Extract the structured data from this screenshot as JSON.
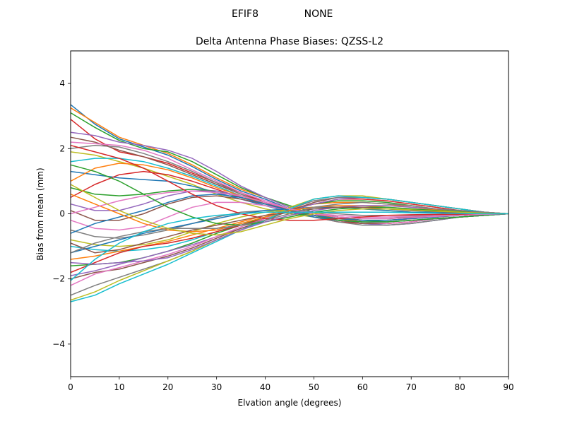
{
  "suptitle": {
    "left": "EFIF8",
    "right": "NONE"
  },
  "chart_data": {
    "type": "line",
    "title": "Delta Antenna Phase Biases: QZSS-L2",
    "xlabel": "Elvation angle (degrees)",
    "ylabel": "Bias from mean (mm)",
    "xlim": [
      0,
      90
    ],
    "ylim": [
      -5,
      5
    ],
    "xticks": [
      0,
      10,
      20,
      30,
      40,
      50,
      60,
      70,
      80,
      90
    ],
    "yticks": [
      -4,
      -2,
      0,
      2,
      4
    ],
    "grid": false,
    "legend": "none",
    "x": [
      0,
      5,
      10,
      15,
      20,
      25,
      30,
      35,
      40,
      45,
      50,
      55,
      60,
      65,
      70,
      75,
      80,
      85,
      90
    ],
    "color_cycle": [
      "#1f77b4",
      "#ff7f0e",
      "#2ca02c",
      "#d62728",
      "#9467bd",
      "#8c564b",
      "#e377c2",
      "#7f7f7f",
      "#bcbd22",
      "#17becf"
    ],
    "series": [
      {
        "values": [
          3.35,
          2.75,
          2.3,
          2.05,
          1.8,
          1.45,
          1.05,
          0.7,
          0.45,
          0.15,
          -0.05,
          -0.2,
          -0.3,
          -0.35,
          -0.3,
          -0.2,
          -0.1,
          -0.05,
          0
        ]
      },
      {
        "values": [
          3.25,
          2.8,
          2.35,
          2.1,
          1.85,
          1.5,
          1.1,
          0.75,
          0.5,
          0.2,
          0.0,
          -0.15,
          -0.25,
          -0.3,
          -0.25,
          -0.15,
          -0.1,
          -0.05,
          0
        ]
      },
      {
        "values": [
          3.1,
          2.65,
          2.25,
          2.0,
          1.9,
          1.6,
          1.2,
          0.8,
          0.5,
          0.25,
          0.05,
          -0.1,
          -0.2,
          -0.25,
          -0.2,
          -0.15,
          -0.1,
          -0.05,
          0
        ]
      },
      {
        "values": [
          2.9,
          2.3,
          1.9,
          1.75,
          1.55,
          1.25,
          0.95,
          0.65,
          0.35,
          0.1,
          -0.1,
          -0.25,
          -0.3,
          -0.3,
          -0.25,
          -0.15,
          -0.1,
          -0.05,
          0
        ]
      },
      {
        "values": [
          2.5,
          2.4,
          2.2,
          2.1,
          1.95,
          1.7,
          1.3,
          0.85,
          0.5,
          0.2,
          -0.05,
          -0.2,
          -0.3,
          -0.35,
          -0.3,
          -0.2,
          -0.1,
          -0.05,
          0
        ]
      },
      {
        "values": [
          2.35,
          2.2,
          1.95,
          1.75,
          1.5,
          1.2,
          0.9,
          0.6,
          0.35,
          0.1,
          -0.1,
          -0.2,
          -0.3,
          -0.3,
          -0.25,
          -0.15,
          -0.1,
          -0.05,
          0
        ]
      },
      {
        "values": [
          2.2,
          2.15,
          2.1,
          1.95,
          1.7,
          1.35,
          1.0,
          0.65,
          0.4,
          0.15,
          -0.05,
          -0.2,
          -0.25,
          -0.3,
          -0.25,
          -0.15,
          -0.1,
          -0.05,
          0
        ]
      },
      {
        "values": [
          2.0,
          2.1,
          2.05,
          1.85,
          1.6,
          1.3,
          0.95,
          0.6,
          0.3,
          0.05,
          -0.1,
          -0.25,
          -0.35,
          -0.35,
          -0.3,
          -0.2,
          -0.1,
          -0.05,
          0
        ]
      },
      {
        "values": [
          1.9,
          1.8,
          1.6,
          1.4,
          1.15,
          0.9,
          0.6,
          0.35,
          0.15,
          0.0,
          -0.1,
          -0.15,
          -0.2,
          -0.2,
          -0.15,
          -0.1,
          -0.05,
          -0.02,
          0
        ]
      },
      {
        "values": [
          1.6,
          1.7,
          1.7,
          1.6,
          1.4,
          1.15,
          0.85,
          0.55,
          0.3,
          0.1,
          -0.05,
          -0.15,
          -0.2,
          -0.2,
          -0.15,
          -0.1,
          -0.05,
          -0.02,
          0
        ]
      },
      {
        "values": [
          1.3,
          1.2,
          1.1,
          1.05,
          1.0,
          0.85,
          0.65,
          0.45,
          0.25,
          0.05,
          -0.1,
          -0.2,
          -0.25,
          -0.25,
          -0.2,
          -0.15,
          -0.1,
          -0.05,
          0
        ]
      },
      {
        "values": [
          1.0,
          1.4,
          1.55,
          1.5,
          1.35,
          1.1,
          0.8,
          0.55,
          0.3,
          0.1,
          -0.05,
          -0.15,
          -0.2,
          -0.2,
          -0.15,
          -0.1,
          -0.05,
          -0.02,
          0
        ]
      },
      {
        "values": [
          0.8,
          0.6,
          0.55,
          0.6,
          0.7,
          0.75,
          0.7,
          0.5,
          0.3,
          0.1,
          -0.05,
          -0.2,
          -0.25,
          -0.25,
          -0.2,
          -0.15,
          -0.1,
          -0.05,
          0
        ]
      },
      {
        "values": [
          0.5,
          0.9,
          1.2,
          1.3,
          1.2,
          1.0,
          0.75,
          0.5,
          0.3,
          0.1,
          -0.05,
          -0.15,
          -0.2,
          -0.2,
          -0.15,
          -0.1,
          -0.05,
          -0.02,
          0
        ]
      },
      {
        "values": [
          0.3,
          0.1,
          0.1,
          0.3,
          0.55,
          0.7,
          0.7,
          0.55,
          0.35,
          0.15,
          0.0,
          -0.1,
          -0.15,
          -0.15,
          -0.1,
          -0.05,
          -0.03,
          -0.01,
          0
        ]
      },
      {
        "values": [
          0.1,
          -0.2,
          -0.2,
          0.0,
          0.3,
          0.5,
          0.55,
          0.45,
          0.3,
          0.15,
          0.0,
          -0.1,
          -0.15,
          -0.15,
          -0.1,
          -0.05,
          -0.03,
          -0.01,
          0
        ]
      },
      {
        "values": [
          -0.2,
          -0.45,
          -0.5,
          -0.4,
          -0.1,
          0.2,
          0.35,
          0.35,
          0.25,
          0.1,
          0.0,
          -0.05,
          -0.1,
          -0.1,
          -0.08,
          -0.05,
          -0.03,
          -0.01,
          0
        ]
      },
      {
        "values": [
          -0.5,
          -0.7,
          -0.75,
          -0.65,
          -0.5,
          -0.3,
          -0.1,
          0.05,
          0.1,
          0.1,
          0.05,
          0.0,
          -0.05,
          -0.05,
          -0.05,
          -0.03,
          -0.02,
          -0.01,
          0
        ]
      },
      {
        "values": [
          -0.8,
          -0.95,
          -1.0,
          -0.95,
          -0.8,
          -0.55,
          -0.3,
          -0.1,
          0.05,
          0.15,
          0.2,
          0.2,
          0.15,
          0.1,
          0.05,
          0.03,
          0.02,
          0.01,
          0
        ]
      },
      {
        "values": [
          -1.0,
          -1.1,
          -1.15,
          -1.1,
          -1.0,
          -0.8,
          -0.55,
          -0.3,
          -0.1,
          0.05,
          0.15,
          0.2,
          0.2,
          0.15,
          0.1,
          0.05,
          0.03,
          0.01,
          0
        ]
      },
      {
        "values": [
          -1.2,
          -1.0,
          -0.8,
          -0.6,
          -0.45,
          -0.3,
          -0.15,
          0.0,
          0.1,
          0.15,
          0.2,
          0.2,
          0.15,
          0.1,
          0.05,
          0.03,
          0.02,
          0.01,
          0
        ]
      },
      {
        "values": [
          -1.4,
          -1.3,
          -1.15,
          -1.0,
          -0.85,
          -0.65,
          -0.45,
          -0.25,
          -0.05,
          0.15,
          0.3,
          0.35,
          0.35,
          0.3,
          0.2,
          0.12,
          0.07,
          0.03,
          0
        ]
      },
      {
        "values": [
          -1.6,
          -1.55,
          -1.5,
          -1.35,
          -1.15,
          -0.9,
          -0.6,
          -0.35,
          -0.1,
          0.1,
          0.3,
          0.4,
          0.4,
          0.35,
          0.25,
          0.15,
          0.08,
          0.03,
          0
        ]
      },
      {
        "values": [
          -1.8,
          -1.5,
          -1.2,
          -1.0,
          -0.9,
          -0.75,
          -0.55,
          -0.35,
          -0.15,
          0.1,
          0.3,
          0.45,
          0.45,
          0.4,
          0.3,
          0.2,
          0.1,
          0.05,
          0
        ]
      },
      {
        "values": [
          -1.9,
          -1.75,
          -1.55,
          -1.35,
          -1.15,
          -0.95,
          -0.7,
          -0.45,
          -0.2,
          0.1,
          0.3,
          0.45,
          0.5,
          0.45,
          0.35,
          0.25,
          0.15,
          0.05,
          0
        ]
      },
      {
        "values": [
          -2.0,
          -1.8,
          -1.7,
          -1.5,
          -1.3,
          -1.05,
          -0.75,
          -0.45,
          -0.2,
          0.1,
          0.35,
          0.5,
          0.5,
          0.45,
          0.35,
          0.25,
          0.15,
          0.05,
          0
        ]
      },
      {
        "values": [
          -2.2,
          -1.85,
          -1.65,
          -1.45,
          -1.25,
          -1.0,
          -0.7,
          -0.4,
          -0.15,
          0.15,
          0.4,
          0.5,
          0.5,
          0.45,
          0.35,
          0.25,
          0.15,
          0.05,
          0
        ]
      },
      {
        "values": [
          -2.5,
          -2.2,
          -1.95,
          -1.7,
          -1.45,
          -1.15,
          -0.8,
          -0.5,
          -0.2,
          0.15,
          0.4,
          0.5,
          0.5,
          0.45,
          0.35,
          0.25,
          0.15,
          0.05,
          0
        ]
      },
      {
        "values": [
          -2.65,
          -2.4,
          -2.05,
          -1.75,
          -1.45,
          -1.15,
          -0.8,
          -0.5,
          -0.2,
          0.2,
          0.45,
          0.55,
          0.55,
          0.45,
          0.35,
          0.25,
          0.15,
          0.05,
          0
        ]
      },
      {
        "values": [
          -2.7,
          -2.5,
          -2.15,
          -1.85,
          -1.55,
          -1.2,
          -0.85,
          -0.5,
          -0.2,
          0.15,
          0.45,
          0.55,
          0.5,
          0.45,
          0.35,
          0.25,
          0.15,
          0.05,
          0
        ]
      },
      {
        "values": [
          -0.6,
          -0.3,
          -0.1,
          0.1,
          0.35,
          0.55,
          0.6,
          0.5,
          0.3,
          0.1,
          -0.05,
          -0.15,
          -0.2,
          -0.2,
          -0.15,
          -0.1,
          -0.05,
          -0.02,
          0
        ]
      },
      {
        "values": [
          0.6,
          0.3,
          0.0,
          -0.3,
          -0.5,
          -0.55,
          -0.5,
          -0.3,
          -0.1,
          0.1,
          0.2,
          0.25,
          0.25,
          0.2,
          0.15,
          0.1,
          0.05,
          0.02,
          0
        ]
      },
      {
        "values": [
          1.5,
          1.3,
          1.0,
          0.6,
          0.2,
          -0.1,
          -0.3,
          -0.35,
          -0.25,
          -0.1,
          0.05,
          0.15,
          0.2,
          0.2,
          0.15,
          0.1,
          0.05,
          0.02,
          0
        ]
      },
      {
        "values": [
          2.1,
          1.9,
          1.7,
          1.4,
          1.0,
          0.6,
          0.25,
          0.0,
          -0.15,
          -0.2,
          -0.2,
          -0.15,
          -0.1,
          -0.05,
          -0.03,
          -0.02,
          -0.01,
          0.0,
          0
        ]
      },
      {
        "values": [
          -1.5,
          -1.55,
          -1.5,
          -1.45,
          -1.35,
          -1.1,
          -0.8,
          -0.5,
          -0.25,
          -0.05,
          0.1,
          0.2,
          0.25,
          0.25,
          0.2,
          0.15,
          0.1,
          0.05,
          0
        ]
      },
      {
        "values": [
          -0.9,
          -1.2,
          -1.1,
          -0.9,
          -0.7,
          -0.5,
          -0.35,
          -0.2,
          -0.05,
          0.05,
          0.15,
          0.2,
          0.2,
          0.15,
          0.1,
          0.07,
          0.04,
          0.02,
          0
        ]
      },
      {
        "values": [
          0.0,
          0.2,
          0.4,
          0.55,
          0.65,
          0.7,
          0.65,
          0.55,
          0.35,
          0.15,
          0.0,
          -0.1,
          -0.15,
          -0.15,
          -0.12,
          -0.08,
          -0.05,
          -0.02,
          0
        ]
      },
      {
        "values": [
          -1.2,
          -0.9,
          -0.7,
          -0.55,
          -0.45,
          -0.45,
          -0.45,
          -0.35,
          -0.2,
          0.0,
          0.2,
          0.3,
          0.35,
          0.3,
          0.25,
          0.15,
          0.1,
          0.05,
          0
        ]
      },
      {
        "values": [
          0.9,
          0.5,
          0.1,
          -0.2,
          -0.45,
          -0.6,
          -0.65,
          -0.55,
          -0.35,
          -0.15,
          0.0,
          0.1,
          0.15,
          0.15,
          0.12,
          0.08,
          0.05,
          0.02,
          0
        ]
      },
      {
        "values": [
          -2.05,
          -1.4,
          -0.9,
          -0.55,
          -0.3,
          -0.15,
          -0.05,
          0.0,
          0.05,
          0.05,
          0.05,
          0.05,
          0.05,
          0.05,
          0.03,
          0.02,
          0.01,
          0.0,
          0
        ]
      }
    ]
  }
}
